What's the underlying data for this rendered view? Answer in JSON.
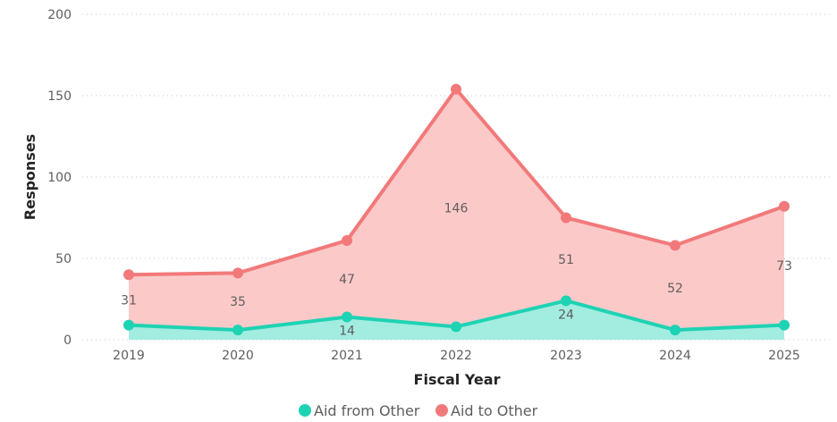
{
  "chart_data": {
    "type": "area",
    "xlabel": "Fiscal Year",
    "ylabel": "Responses",
    "ylim": [
      0,
      200
    ],
    "yticks": [
      "0",
      "50",
      "100",
      "150",
      "200"
    ],
    "grid": true,
    "legend_position": "bottom",
    "categories": [
      "2019",
      "2020",
      "2021",
      "2022",
      "2023",
      "2024",
      "2025"
    ],
    "series": [
      {
        "name": "Aid from Other",
        "color": "#1ed3b3",
        "fill": "#a3ece0",
        "values": [
          9,
          6,
          14,
          8,
          24,
          6,
          9
        ],
        "labels": [
          "",
          "",
          "14",
          "",
          "24",
          "",
          ""
        ]
      },
      {
        "name": "Aid to Other",
        "color": "#f2797a",
        "fill": "#fcc9c9",
        "values": [
          31,
          35,
          47,
          146,
          51,
          52,
          73
        ],
        "labels": [
          "31",
          "35",
          "47",
          "146",
          "51",
          "52",
          "73"
        ]
      }
    ]
  }
}
